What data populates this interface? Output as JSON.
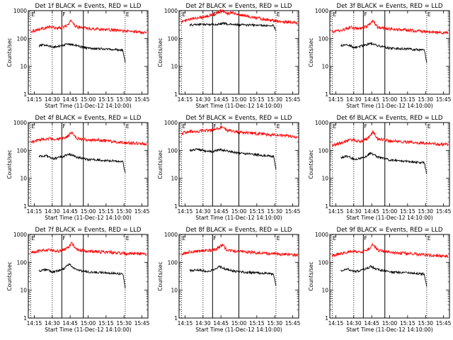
{
  "figure": {
    "time_ticks": [
      "14:15",
      "14:30",
      "14:45",
      "15:00",
      "15:15",
      "15:30",
      "15:45"
    ],
    "y_ticks": [
      "1",
      "10",
      "100",
      "1000"
    ],
    "ylabel": "Counts/sec",
    "xlabel": "Start Time (11-Dec-12 14:10:00)",
    "background_color": "#ffffff",
    "events_color": "#000000",
    "lld_color": "#ff0000"
  },
  "chart_data": [
    {
      "type": "line",
      "title": "Det 1f BLACK = Events, RED = LLD",
      "ylabel": "Counts/sec",
      "xlabel": "Start Time (11-Dec-12 14:10:00)",
      "y_scale": "log",
      "ylim": [
        1,
        1000
      ],
      "xlim": [
        "14:10",
        "15:50"
      ],
      "markers": [
        {
          "time": "14:12",
          "label": "E",
          "style": "dotted"
        },
        {
          "time": "14:30",
          "label": "",
          "style": "dotted"
        },
        {
          "time": "14:38",
          "label": "F",
          "style": "solid"
        },
        {
          "time": "14:56",
          "label": "",
          "style": "solid"
        },
        {
          "time": "15:31",
          "label": "E",
          "style": "dotted"
        }
      ],
      "series": [
        {
          "name": "RED = LLD",
          "color": "#ff0000",
          "time": [
            "14:12",
            "14:20",
            "14:28",
            "14:35",
            "14:40",
            "14:44",
            "14:46",
            "14:50",
            "15:00",
            "15:15",
            "15:30",
            "15:45",
            "15:49"
          ],
          "values": [
            180,
            220,
            260,
            230,
            260,
            330,
            450,
            260,
            230,
            210,
            185,
            170,
            165
          ]
        },
        {
          "name": "BLACK = Events",
          "color": "#000000",
          "time": [
            "14:19",
            "14:25",
            "14:30",
            "14:35",
            "14:40",
            "14:44",
            "14:50",
            "15:00",
            "15:15",
            "15:29",
            "15:31"
          ],
          "values": [
            55,
            60,
            48,
            52,
            58,
            65,
            55,
            45,
            42,
            38,
            14
          ]
        }
      ]
    },
    {
      "type": "line",
      "title": "Det 2f BLACK = Events, RED = LLD",
      "ylabel": "Counts/sec",
      "xlabel": "Start Time (11-Dec-12 14:10:00)",
      "y_scale": "log",
      "ylim": [
        1,
        1000
      ],
      "xlim": [
        "14:10",
        "15:50"
      ],
      "markers": [
        {
          "time": "14:12",
          "label": "E",
          "style": "dotted"
        },
        {
          "time": "14:30",
          "label": "",
          "style": "dotted"
        },
        {
          "time": "14:38",
          "label": "F",
          "style": "solid"
        },
        {
          "time": "15:00",
          "label": "",
          "style": "solid"
        },
        {
          "time": "15:31",
          "label": "E",
          "style": "dotted"
        }
      ],
      "series": [
        {
          "name": "RED = LLD",
          "color": "#ff0000",
          "time": [
            "14:12",
            "14:25",
            "14:35",
            "14:42",
            "14:46",
            "14:50",
            "14:54",
            "15:00",
            "15:10",
            "15:20",
            "15:30",
            "15:45",
            "15:49"
          ],
          "values": [
            400,
            550,
            650,
            820,
            1050,
            760,
            900,
            700,
            600,
            500,
            430,
            380,
            360
          ]
        },
        {
          "name": "BLACK = Events",
          "color": "#000000",
          "time": [
            "14:19",
            "14:25",
            "14:35",
            "14:43",
            "14:47",
            "14:52",
            "15:00",
            "15:15",
            "15:29",
            "15:31"
          ],
          "values": [
            300,
            320,
            320,
            320,
            360,
            320,
            310,
            300,
            290,
            180
          ]
        }
      ]
    },
    {
      "type": "line",
      "title": "Det 3f BLACK = Events, RED = LLD",
      "ylabel": "Counts/sec",
      "xlabel": "Start Time (11-Dec-12 14:10:00)",
      "y_scale": "log",
      "ylim": [
        1,
        1000
      ],
      "xlim": [
        "14:10",
        "15:50"
      ],
      "markers": [
        {
          "time": "14:12",
          "label": "E",
          "style": "dotted"
        },
        {
          "time": "14:30",
          "label": "",
          "style": "dotted"
        },
        {
          "time": "14:38",
          "label": "F",
          "style": "solid"
        },
        {
          "time": "14:56",
          "label": "",
          "style": "solid"
        },
        {
          "time": "15:31",
          "label": "E",
          "style": "dotted"
        }
      ],
      "series": [
        {
          "name": "RED = LLD",
          "color": "#ff0000",
          "time": [
            "14:12",
            "14:20",
            "14:28",
            "14:35",
            "14:40",
            "14:44",
            "14:46",
            "14:50",
            "15:00",
            "15:15",
            "15:30",
            "15:45",
            "15:49"
          ],
          "values": [
            170,
            200,
            250,
            220,
            260,
            320,
            430,
            250,
            220,
            200,
            175,
            160,
            155
          ]
        },
        {
          "name": "BLACK = Events",
          "color": "#000000",
          "time": [
            "14:19",
            "14:25",
            "14:30",
            "14:35",
            "14:40",
            "14:45",
            "14:50",
            "15:00",
            "15:15",
            "15:29",
            "15:31"
          ],
          "values": [
            55,
            60,
            48,
            52,
            58,
            68,
            55,
            45,
            42,
            38,
            14
          ]
        }
      ]
    },
    {
      "type": "line",
      "title": "Det 4f BLACK = Events, RED = LLD",
      "ylabel": "Counts/sec",
      "xlabel": "Start Time (11-Dec-12 14:10:00)",
      "y_scale": "log",
      "ylim": [
        1,
        1000
      ],
      "xlim": [
        "14:10",
        "15:50"
      ],
      "markers": [
        {
          "time": "14:12",
          "label": "E",
          "style": "dotted"
        },
        {
          "time": "14:30",
          "label": "",
          "style": "dotted"
        },
        {
          "time": "14:38",
          "label": "F",
          "style": "solid"
        },
        {
          "time": "14:56",
          "label": "",
          "style": "solid"
        },
        {
          "time": "15:31",
          "label": "E",
          "style": "dotted"
        }
      ],
      "series": [
        {
          "name": "RED = LLD",
          "color": "#ff0000",
          "time": [
            "14:12",
            "14:20",
            "14:28",
            "14:35",
            "14:40",
            "14:44",
            "14:46",
            "14:50",
            "15:00",
            "15:15",
            "15:30",
            "15:45",
            "15:49"
          ],
          "values": [
            200,
            240,
            270,
            250,
            270,
            340,
            460,
            270,
            240,
            220,
            190,
            175,
            170
          ]
        },
        {
          "name": "BLACK = Events",
          "color": "#000000",
          "time": [
            "14:19",
            "14:25",
            "14:30",
            "14:35",
            "14:40",
            "14:44",
            "14:50",
            "15:00",
            "15:15",
            "15:29",
            "15:31"
          ],
          "values": [
            60,
            65,
            50,
            55,
            62,
            75,
            58,
            47,
            44,
            40,
            15
          ]
        }
      ]
    },
    {
      "type": "line",
      "title": "Det 5f BLACK = Events, RED = LLD",
      "ylabel": "Counts/sec",
      "xlabel": "Start Time (11-Dec-12 14:10:00)",
      "y_scale": "log",
      "ylim": [
        1,
        1000
      ],
      "xlim": [
        "14:10",
        "15:50"
      ],
      "markers": [
        {
          "time": "14:12",
          "label": "E",
          "style": "dotted"
        },
        {
          "time": "14:30",
          "label": "",
          "style": "dotted"
        },
        {
          "time": "14:38",
          "label": "F",
          "style": "solid"
        },
        {
          "time": "15:00",
          "label": "",
          "style": "solid"
        },
        {
          "time": "15:31",
          "label": "E",
          "style": "dotted"
        }
      ],
      "series": [
        {
          "name": "RED = LLD",
          "color": "#ff0000",
          "time": [
            "14:12",
            "14:20",
            "14:30",
            "14:38",
            "14:43",
            "14:46",
            "14:50",
            "15:00",
            "15:15",
            "15:30",
            "15:45",
            "15:49"
          ],
          "values": [
            420,
            480,
            500,
            520,
            600,
            720,
            520,
            450,
            400,
            360,
            320,
            310
          ]
        },
        {
          "name": "BLACK = Events",
          "color": "#000000",
          "time": [
            "14:19",
            "14:25",
            "14:32",
            "14:38",
            "14:44",
            "14:50",
            "15:00",
            "15:15",
            "15:29",
            "15:31"
          ],
          "values": [
            100,
            110,
            95,
            90,
            105,
            95,
            80,
            70,
            60,
            22
          ]
        }
      ]
    },
    {
      "type": "line",
      "title": "Det 6f BLACK = Events, RED = LLD",
      "ylabel": "Counts/sec",
      "xlabel": "Start Time (11-Dec-12 14:10:00)",
      "y_scale": "log",
      "ylim": [
        1,
        1000
      ],
      "xlim": [
        "14:10",
        "15:50"
      ],
      "markers": [
        {
          "time": "14:12",
          "label": "E",
          "style": "dotted"
        },
        {
          "time": "14:30",
          "label": "",
          "style": "dotted"
        },
        {
          "time": "14:38",
          "label": "F",
          "style": "solid"
        },
        {
          "time": "14:56",
          "label": "",
          "style": "solid"
        },
        {
          "time": "15:31",
          "label": "E",
          "style": "dotted"
        }
      ],
      "series": [
        {
          "name": "RED = LLD",
          "color": "#ff0000",
          "time": [
            "14:12",
            "14:20",
            "14:28",
            "14:35",
            "14:40",
            "14:44",
            "14:46",
            "14:50",
            "15:00",
            "15:15",
            "15:30",
            "15:45",
            "15:49"
          ],
          "values": [
            150,
            190,
            240,
            210,
            250,
            320,
            480,
            260,
            220,
            200,
            180,
            165,
            160
          ]
        },
        {
          "name": "BLACK = Events",
          "color": "#000000",
          "time": [
            "14:19",
            "14:25",
            "14:30",
            "14:35",
            "14:40",
            "14:44",
            "14:50",
            "15:00",
            "15:15",
            "15:29",
            "15:31"
          ],
          "values": [
            55,
            62,
            48,
            52,
            60,
            80,
            58,
            45,
            40,
            36,
            14
          ]
        }
      ]
    },
    {
      "type": "line",
      "title": "Det 7f BLACK = Events, RED = LLD",
      "ylabel": "Counts/sec",
      "xlabel": "Start Time (11-Dec-12 14:10:00)",
      "y_scale": "log",
      "ylim": [
        1,
        1000
      ],
      "xlim": [
        "14:10",
        "15:50"
      ],
      "markers": [
        {
          "time": "14:12",
          "label": "E",
          "style": "dotted"
        },
        {
          "time": "14:30",
          "label": "",
          "style": "dotted"
        },
        {
          "time": "14:38",
          "label": "F",
          "style": "solid"
        },
        {
          "time": "14:56",
          "label": "",
          "style": "solid"
        },
        {
          "time": "15:31",
          "label": "E",
          "style": "dotted"
        }
      ],
      "series": [
        {
          "name": "RED = LLD",
          "color": "#ff0000",
          "time": [
            "14:12",
            "14:20",
            "14:28",
            "14:35",
            "14:40",
            "14:44",
            "14:46",
            "14:50",
            "15:00",
            "15:15",
            "15:30",
            "15:45",
            "15:49"
          ],
          "values": [
            220,
            260,
            280,
            250,
            280,
            350,
            520,
            290,
            250,
            230,
            210,
            200,
            195
          ]
        },
        {
          "name": "BLACK = Events",
          "color": "#000000",
          "time": [
            "14:19",
            "14:25",
            "14:30",
            "14:35",
            "14:40",
            "14:44",
            "14:50",
            "15:00",
            "15:15",
            "15:29",
            "15:31"
          ],
          "values": [
            50,
            55,
            45,
            50,
            60,
            85,
            55,
            45,
            42,
            38,
            12
          ]
        }
      ]
    },
    {
      "type": "line",
      "title": "Det 8f BLACK = Events, RED = LLD",
      "ylabel": "Counts/sec",
      "xlabel": "Start Time (11-Dec-12 14:10:00)",
      "y_scale": "log",
      "ylim": [
        1,
        1000
      ],
      "xlim": [
        "14:10",
        "15:50"
      ],
      "markers": [
        {
          "time": "14:12",
          "label": "E",
          "style": "dotted"
        },
        {
          "time": "14:30",
          "label": "",
          "style": "dotted"
        },
        {
          "time": "14:38",
          "label": "F",
          "style": "solid"
        },
        {
          "time": "15:00",
          "label": "",
          "style": "solid"
        },
        {
          "time": "15:31",
          "label": "E",
          "style": "dotted"
        }
      ],
      "series": [
        {
          "name": "RED = LLD",
          "color": "#ff0000",
          "time": [
            "14:12",
            "14:20",
            "14:30",
            "14:38",
            "14:43",
            "14:46",
            "14:50",
            "15:00",
            "15:15",
            "15:30",
            "15:45",
            "15:49"
          ],
          "values": [
            200,
            240,
            260,
            270,
            330,
            420,
            280,
            240,
            220,
            200,
            185,
            180
          ]
        },
        {
          "name": "BLACK = Events",
          "color": "#000000",
          "time": [
            "14:19",
            "14:25",
            "14:32",
            "14:38",
            "14:44",
            "14:50",
            "15:00",
            "15:15",
            "15:29",
            "15:31"
          ],
          "values": [
            50,
            55,
            48,
            52,
            70,
            55,
            45,
            42,
            38,
            14
          ]
        }
      ]
    },
    {
      "type": "line",
      "title": "Det 9f BLACK = Events, RED = LLD",
      "ylabel": "Counts/sec",
      "xlabel": "Start Time (11-Dec-12 14:10:00)",
      "y_scale": "log",
      "ylim": [
        1,
        1000
      ],
      "xlim": [
        "14:10",
        "15:50"
      ],
      "markers": [
        {
          "time": "14:12",
          "label": "E",
          "style": "dotted"
        },
        {
          "time": "14:30",
          "label": "",
          "style": "dotted"
        },
        {
          "time": "14:38",
          "label": "F",
          "style": "solid"
        },
        {
          "time": "14:56",
          "label": "",
          "style": "solid"
        },
        {
          "time": "15:31",
          "label": "E",
          "style": "dotted"
        }
      ],
      "series": [
        {
          "name": "RED = LLD",
          "color": "#ff0000",
          "time": [
            "14:12",
            "14:20",
            "14:28",
            "14:35",
            "14:40",
            "14:44",
            "14:46",
            "14:50",
            "15:00",
            "15:15",
            "15:30",
            "15:45",
            "15:49"
          ],
          "values": [
            170,
            210,
            250,
            230,
            260,
            330,
            450,
            270,
            230,
            210,
            185,
            170,
            165
          ]
        },
        {
          "name": "BLACK = Events",
          "color": "#000000",
          "time": [
            "14:19",
            "14:25",
            "14:30",
            "14:35",
            "14:40",
            "14:44",
            "14:50",
            "15:00",
            "15:15",
            "15:29",
            "15:31"
          ],
          "values": [
            50,
            58,
            46,
            50,
            58,
            70,
            55,
            45,
            42,
            38,
            14
          ]
        }
      ]
    }
  ]
}
